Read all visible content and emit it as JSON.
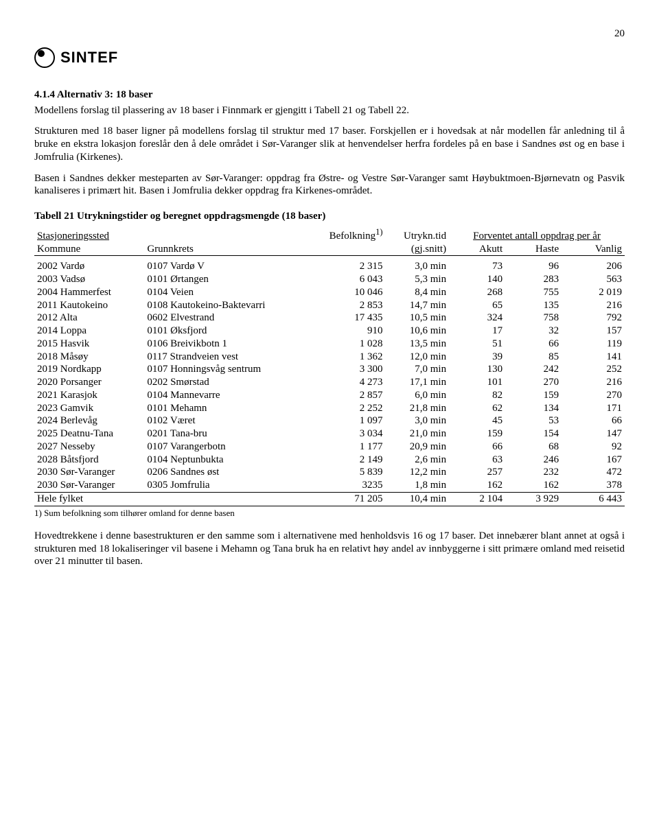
{
  "page_number": "20",
  "logo_text": "SINTEF",
  "heading": "4.1.4   Alternativ 3: 18 baser",
  "para1a": "Modellens forslag til plassering av 18 baser i Finnmark er gjengitt i Tabell 21 og Tabell 22.",
  "para2": "Strukturen med 18 baser ligner på modellens forslag til struktur med 17 baser. Forskjellen er i hovedsak at når modellen får anledning til å bruke en ekstra lokasjon foreslår den å dele området i Sør-Varanger slik at henvendelser herfra fordeles på en base i Sandnes øst og en base i Jomfrulia (Kirkenes).",
  "para3": "Basen i Sandnes dekker mesteparten av Sør-Varanger: oppdrag fra Østre- og Vestre Sør-Varanger samt Høybuktmoen-Bjørnevatn og Pasvik kanaliseres i primært hit. Basen i Jomfrulia dekker oppdrag fra Kirkenes-området.",
  "table_title": "Tabell 21 Utrykningstider og beregnet oppdragsmengde (18 baser)",
  "headers": {
    "stasjoneringssted": "Stasjoneringssted",
    "befolkning": "Befolkning",
    "sup": "1)",
    "utrykn": "Utrykn.tid",
    "forventet": "Forventet antall oppdrag per år",
    "kommune": "Kommune",
    "grunnkrets": "Grunnkrets",
    "gjsnitt": "(gj.snitt)",
    "akutt": "Akutt",
    "haste": "Haste",
    "vanlig": "Vanlig"
  },
  "rows": [
    {
      "kommune": "2002 Vardø",
      "grunnkrets": "0107 Vardø V",
      "bef": "2 315",
      "tid": "3,0 min",
      "akutt": "73",
      "haste": "96",
      "vanlig": "206"
    },
    {
      "kommune": "2003 Vadsø",
      "grunnkrets": "0101 Ørtangen",
      "bef": "6 043",
      "tid": "5,3 min",
      "akutt": "140",
      "haste": "283",
      "vanlig": "563"
    },
    {
      "kommune": "2004 Hammerfest",
      "grunnkrets": "0104 Veien",
      "bef": "10 046",
      "tid": "8,4 min",
      "akutt": "268",
      "haste": "755",
      "vanlig": "2 019"
    },
    {
      "kommune": "2011 Kautokeino",
      "grunnkrets": "0108 Kautokeino-Baktevarri",
      "bef": "2 853",
      "tid": "14,7 min",
      "akutt": "65",
      "haste": "135",
      "vanlig": "216"
    },
    {
      "kommune": "2012 Alta",
      "grunnkrets": "0602 Elvestrand",
      "bef": "17 435",
      "tid": "10,5 min",
      "akutt": "324",
      "haste": "758",
      "vanlig": "792"
    },
    {
      "kommune": "2014 Loppa",
      "grunnkrets": "0101 Øksfjord",
      "bef": "910",
      "tid": "10,6 min",
      "akutt": "17",
      "haste": "32",
      "vanlig": "157"
    },
    {
      "kommune": "2015 Hasvik",
      "grunnkrets": "0106 Breivikbotn 1",
      "bef": "1 028",
      "tid": "13,5 min",
      "akutt": "51",
      "haste": "66",
      "vanlig": "119"
    },
    {
      "kommune": "2018 Måsøy",
      "grunnkrets": "0117 Strandveien vest",
      "bef": "1 362",
      "tid": "12,0 min",
      "akutt": "39",
      "haste": "85",
      "vanlig": "141"
    },
    {
      "kommune": "2019 Nordkapp",
      "grunnkrets": "0107 Honningsvåg sentrum",
      "bef": "3 300",
      "tid": "7,0 min",
      "akutt": "130",
      "haste": "242",
      "vanlig": "252"
    },
    {
      "kommune": "2020 Porsanger",
      "grunnkrets": "0202 Smørstad",
      "bef": "4 273",
      "tid": "17,1 min",
      "akutt": "101",
      "haste": "270",
      "vanlig": "216"
    },
    {
      "kommune": "2021 Karasjok",
      "grunnkrets": "0104 Mannevarre",
      "bef": "2 857",
      "tid": "6,0 min",
      "akutt": "82",
      "haste": "159",
      "vanlig": "270"
    },
    {
      "kommune": "2023 Gamvik",
      "grunnkrets": "0101 Mehamn",
      "bef": "2 252",
      "tid": "21,8 min",
      "akutt": "62",
      "haste": "134",
      "vanlig": "171"
    },
    {
      "kommune": "2024 Berlevåg",
      "grunnkrets": "0102 Været",
      "bef": "1 097",
      "tid": "3,0 min",
      "akutt": "45",
      "haste": "53",
      "vanlig": "66"
    },
    {
      "kommune": "2025 Deatnu-Tana",
      "grunnkrets": "0201 Tana-bru",
      "bef": "3 034",
      "tid": "21,0 min",
      "akutt": "159",
      "haste": "154",
      "vanlig": "147"
    },
    {
      "kommune": "2027 Nesseby",
      "grunnkrets": "0107 Varangerbotn",
      "bef": "1 177",
      "tid": "20,9 min",
      "akutt": "66",
      "haste": "68",
      "vanlig": "92"
    },
    {
      "kommune": "2028 Båtsfjord",
      "grunnkrets": "0104 Neptunbukta",
      "bef": "2 149",
      "tid": "2,6 min",
      "akutt": "63",
      "haste": "246",
      "vanlig": "167"
    },
    {
      "kommune": "2030 Sør-Varanger",
      "grunnkrets": "0206 Sandnes øst",
      "bef": "5 839",
      "tid": "12,2 min",
      "akutt": "257",
      "haste": "232",
      "vanlig": "472"
    },
    {
      "kommune": "2030 Sør-Varanger",
      "grunnkrets": "0305 Jomfrulia",
      "bef": "3235",
      "tid": "1,8 min",
      "akutt": "162",
      "haste": "162",
      "vanlig": "378"
    }
  ],
  "total": {
    "label": "Hele fylket",
    "bef": "71 205",
    "tid": "10,4 min",
    "akutt": "2 104",
    "haste": "3 929",
    "vanlig": "6 443"
  },
  "footnote": "1) Sum befolkning som tilhører omland for denne basen",
  "para4": "Hovedtrekkene i denne basestrukturen er den samme som i alternativene med henholdsvis 16 og 17 baser. Det innebærer blant annet at også i strukturen med 18 lokaliseringer vil basene i Mehamn og Tana bruk ha en relativt høy andel av innbyggerne i sitt primære omland med reisetid over 21 minutter til basen."
}
